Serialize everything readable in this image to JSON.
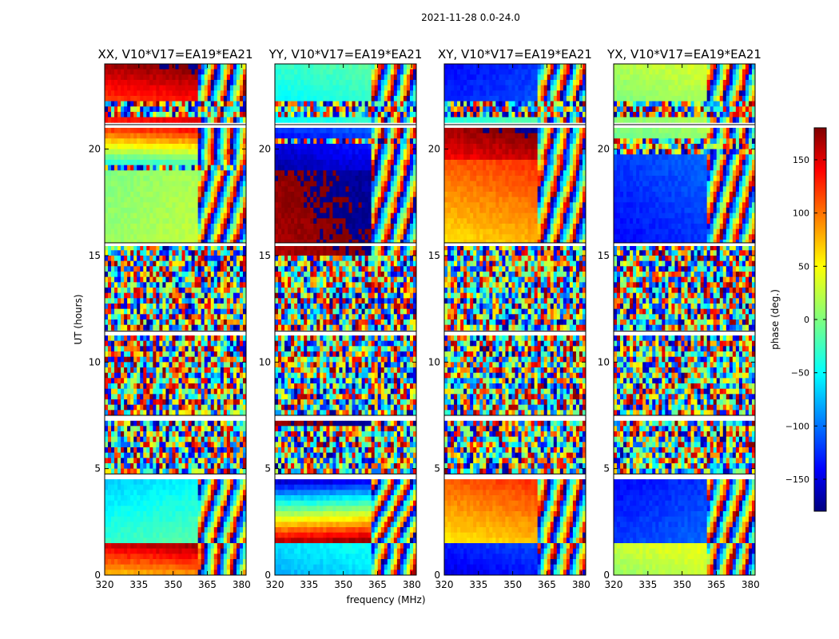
{
  "figure": {
    "suptitle": "2021-11-28 0.0-24.0",
    "shared_xlabel": "frequency (MHz)",
    "shared_ylabel": "UT (hours)"
  },
  "colorbar": {
    "label": "phase (deg.)",
    "range": [
      -180,
      180
    ],
    "ticks": [
      "150",
      "100",
      "50",
      "0",
      "−50",
      "−100",
      "−150"
    ],
    "tick_values": [
      150,
      100,
      50,
      0,
      -50,
      -100,
      -150
    ],
    "colormap": "jet",
    "colors": [
      "#00007f",
      "#0000ff",
      "#00ffff",
      "#7fff7f",
      "#ffff00",
      "#ff0000",
      "#7f0000"
    ]
  },
  "chart_data": [
    {
      "type": "heatmap",
      "title": "XX, V10*V17=EA19*EA21",
      "xlabel": "frequency (MHz)",
      "ylabel": "UT (hours)",
      "xlim": [
        320,
        382
      ],
      "ylim": [
        0,
        24
      ],
      "xticks": [
        "320",
        "335",
        "350",
        "365",
        "380"
      ],
      "yticks": [
        "0",
        "5",
        "10",
        "15",
        "20"
      ],
      "noise_bands_hours": [
        [
          4.8,
          7.2
        ],
        [
          7.6,
          15.4
        ],
        [
          19.0,
          19.3
        ],
        [
          21.6,
          22.3
        ]
      ],
      "blank_gaps_hours": [
        [
          4.5,
          4.75
        ],
        [
          7.25,
          7.5
        ],
        [
          11.3,
          11.45
        ],
        [
          15.45,
          15.6
        ],
        [
          21.0,
          21.15
        ]
      ],
      "smooth_segments": [
        {
          "t0": 0.0,
          "t1": 1.5,
          "phase_start": 70,
          "phase_end": 160
        },
        {
          "t0": 1.5,
          "t1": 4.5,
          "phase_start": -30,
          "phase_end": -70
        },
        {
          "t0": 15.6,
          "t1": 19.0,
          "phase_start": 10,
          "phase_end": 0
        },
        {
          "t0": 19.3,
          "t1": 21.0,
          "phase_start": -40,
          "phase_end": 130
        },
        {
          "t0": 21.0,
          "t1": 21.6,
          "phase_start": 100,
          "phase_end": 150
        },
        {
          "t0": 22.3,
          "t1": 24.0,
          "phase_start": 120,
          "phase_end": 170
        }
      ],
      "fringe_start_mhz": 361
    },
    {
      "type": "heatmap",
      "title": "YY, V10*V17=EA19*EA21",
      "xlabel": "frequency (MHz)",
      "ylabel": "UT (hours)",
      "xlim": [
        320,
        382
      ],
      "ylim": [
        0,
        24
      ],
      "xticks": [
        "320",
        "335",
        "350",
        "365",
        "380"
      ],
      "yticks": [
        "0",
        "5",
        "10",
        "15",
        "20"
      ],
      "noise_bands_hours": [
        [
          4.8,
          7.0
        ],
        [
          7.6,
          15.0
        ],
        [
          20.2,
          20.5
        ],
        [
          21.6,
          22.3
        ]
      ],
      "blank_gaps_hours": [
        [
          4.5,
          4.75
        ],
        [
          7.25,
          7.5
        ],
        [
          11.3,
          11.45
        ],
        [
          15.45,
          15.6
        ],
        [
          21.0,
          21.15
        ]
      ],
      "smooth_segments": [
        {
          "t0": 0.0,
          "t1": 1.5,
          "phase_start": -80,
          "phase_end": -60
        },
        {
          "t0": 1.5,
          "t1": 4.5,
          "phase_start": 170,
          "phase_end": -170
        },
        {
          "t0": 7.0,
          "t1": 7.2,
          "phase_start": 170,
          "phase_end": 175
        },
        {
          "t0": 15.0,
          "t1": 19.0,
          "phase_start": 165,
          "phase_end": 175
        },
        {
          "t0": 19.0,
          "t1": 20.2,
          "phase_start": -170,
          "phase_end": -150
        },
        {
          "t0": 20.5,
          "t1": 21.0,
          "phase_start": -140,
          "phase_end": -120
        },
        {
          "t0": 21.0,
          "t1": 21.6,
          "phase_start": -70,
          "phase_end": -40
        },
        {
          "t0": 22.3,
          "t1": 24.0,
          "phase_start": -50,
          "phase_end": -30
        }
      ],
      "fringe_start_mhz": 363
    },
    {
      "type": "heatmap",
      "title": "XY, V10*V17=EA19*EA21",
      "xlabel": "frequency (MHz)",
      "ylabel": "UT (hours)",
      "xlim": [
        320,
        382
      ],
      "ylim": [
        0,
        24
      ],
      "xticks": [
        "320",
        "335",
        "350",
        "365",
        "380"
      ],
      "yticks": [
        "0",
        "5",
        "10",
        "15",
        "20"
      ],
      "noise_bands_hours": [
        [
          4.8,
          7.2
        ],
        [
          7.6,
          15.4
        ],
        [
          21.6,
          22.3
        ]
      ],
      "blank_gaps_hours": [
        [
          4.5,
          4.75
        ],
        [
          7.25,
          7.5
        ],
        [
          11.3,
          11.45
        ],
        [
          15.45,
          15.6
        ],
        [
          21.0,
          21.15
        ]
      ],
      "smooth_segments": [
        {
          "t0": 0.0,
          "t1": 1.5,
          "phase_start": -150,
          "phase_end": -130
        },
        {
          "t0": 1.5,
          "t1": 4.5,
          "phase_start": 55,
          "phase_end": 110
        },
        {
          "t0": 15.6,
          "t1": 19.5,
          "phase_start": 60,
          "phase_end": 110
        },
        {
          "t0": 19.5,
          "t1": 21.0,
          "phase_start": 140,
          "phase_end": 170
        },
        {
          "t0": 21.0,
          "t1": 21.6,
          "phase_start": 170,
          "phase_end": -160
        },
        {
          "t0": 22.3,
          "t1": 24.0,
          "phase_start": -130,
          "phase_end": -140
        }
      ],
      "fringe_start_mhz": 362
    },
    {
      "type": "heatmap",
      "title": "YX, V10*V17=EA19*EA21",
      "xlabel": "frequency (MHz)",
      "ylabel": "UT (hours)",
      "xlim": [
        320,
        382
      ],
      "ylim": [
        0,
        24
      ],
      "xticks": [
        "320",
        "335",
        "350",
        "365",
        "380"
      ],
      "yticks": [
        "0",
        "5",
        "10",
        "15",
        "20"
      ],
      "noise_bands_hours": [
        [
          4.8,
          7.2
        ],
        [
          7.6,
          15.4
        ],
        [
          19.8,
          20.5
        ],
        [
          21.6,
          22.3
        ]
      ],
      "blank_gaps_hours": [
        [
          4.5,
          4.75
        ],
        [
          7.25,
          7.5
        ],
        [
          11.3,
          11.45
        ],
        [
          15.45,
          15.6
        ],
        [
          21.0,
          21.15
        ]
      ],
      "smooth_segments": [
        {
          "t0": 0.0,
          "t1": 1.5,
          "phase_start": 10,
          "phase_end": 30
        },
        {
          "t0": 1.5,
          "t1": 4.5,
          "phase_start": -120,
          "phase_end": -140
        },
        {
          "t0": 15.6,
          "t1": 19.8,
          "phase_start": -140,
          "phase_end": -120
        },
        {
          "t0": 20.5,
          "t1": 21.0,
          "phase_start": -10,
          "phase_end": 0
        },
        {
          "t0": 21.0,
          "t1": 21.6,
          "phase_start": -10,
          "phase_end": 10
        },
        {
          "t0": 22.3,
          "t1": 24.0,
          "phase_start": 0,
          "phase_end": 20
        }
      ],
      "fringe_start_mhz": 362
    }
  ]
}
